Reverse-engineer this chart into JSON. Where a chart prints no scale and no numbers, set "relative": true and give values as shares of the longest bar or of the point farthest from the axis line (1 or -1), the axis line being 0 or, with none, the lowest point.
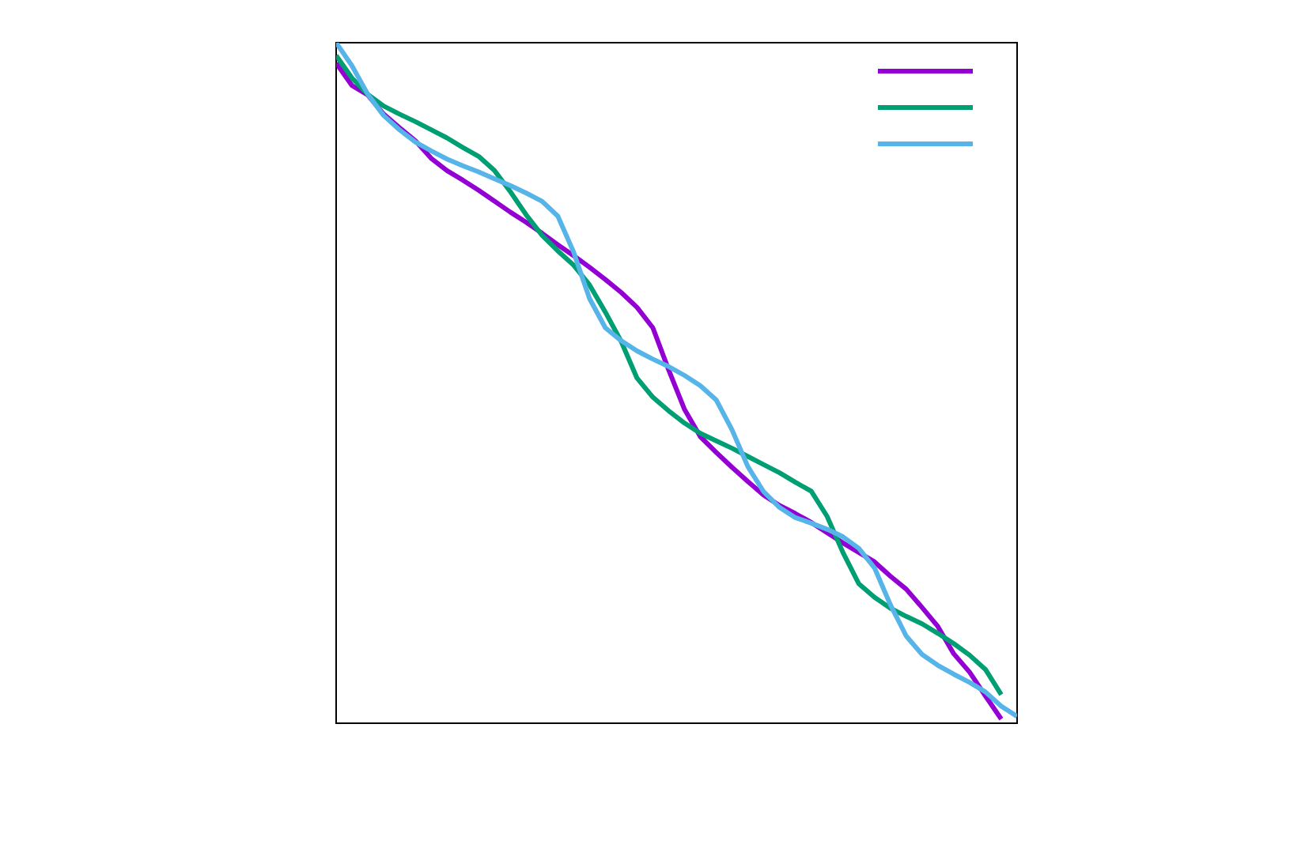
{
  "chart_data": {
    "type": "line",
    "relative": true,
    "line_style": "solid",
    "categories": [
      null,
      null,
      null,
      null,
      null,
      null,
      null,
      null,
      null,
      null,
      null,
      null,
      null,
      null,
      null,
      null,
      null,
      null,
      null,
      null,
      null,
      null,
      null,
      null,
      null,
      null,
      null,
      null,
      null,
      null,
      null,
      null,
      null,
      null,
      null,
      null,
      null,
      null,
      null,
      null,
      null,
      null,
      null,
      null
    ],
    "series": [
      {
        "color": "#9400d3",
        "values": [
          0.97,
          0.937,
          0.923,
          0.895,
          0.875,
          0.856,
          0.83,
          0.812,
          0.798,
          0.783,
          0.767,
          0.751,
          0.736,
          0.72,
          0.703,
          0.687,
          0.67,
          0.652,
          0.633,
          0.611,
          0.581,
          0.519,
          0.461,
          0.421,
          0.398,
          0.376,
          0.355,
          0.335,
          0.32,
          0.308,
          0.295,
          0.28,
          0.265,
          0.251,
          0.237,
          0.216,
          0.197,
          0.17,
          0.142,
          0.102,
          0.075,
          0.04,
          0.006,
          null
        ]
      },
      {
        "color": "#009e73",
        "values": [
          0.981,
          0.948,
          0.924,
          0.907,
          0.895,
          0.884,
          0.872,
          0.86,
          0.846,
          0.833,
          0.812,
          0.781,
          0.747,
          0.717,
          0.694,
          0.673,
          0.644,
          0.604,
          0.561,
          0.507,
          0.479,
          0.459,
          0.441,
          0.426,
          0.415,
          0.404,
          0.392,
          0.38,
          0.368,
          0.354,
          0.341,
          0.304,
          0.251,
          0.205,
          0.185,
          0.169,
          0.157,
          0.146,
          0.132,
          0.117,
          0.1,
          0.079,
          0.042,
          null
        ]
      },
      {
        "color": "#56b4e9",
        "values": [
          1.0,
          0.966,
          0.924,
          0.893,
          0.872,
          0.854,
          0.841,
          0.829,
          0.819,
          0.81,
          0.8,
          0.79,
          0.779,
          0.767,
          0.745,
          0.692,
          0.624,
          0.581,
          0.562,
          0.547,
          0.535,
          0.524,
          0.511,
          0.496,
          0.475,
          0.431,
          0.377,
          0.34,
          0.317,
          0.302,
          0.294,
          0.285,
          0.274,
          0.257,
          0.228,
          0.174,
          0.128,
          0.101,
          0.085,
          0.072,
          0.06,
          0.046,
          0.025,
          0.01
        ]
      }
    ]
  }
}
